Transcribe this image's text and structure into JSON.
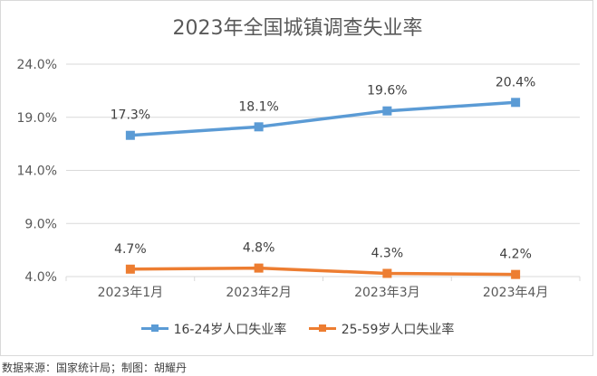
{
  "chart_data": {
    "type": "line",
    "title": "2023年全国城镇调查失业率",
    "categories": [
      "2023年1月",
      "2023年2月",
      "2023年3月",
      "2023年4月"
    ],
    "series": [
      {
        "name": "16-24岁人口失业率",
        "values": [
          17.3,
          18.1,
          19.6,
          20.4
        ],
        "labels": [
          "17.3%",
          "18.1%",
          "19.6%",
          "20.4%"
        ],
        "color": "#5b9bd5"
      },
      {
        "name": "25-59岁人口失业率",
        "values": [
          4.7,
          4.8,
          4.3,
          4.2
        ],
        "labels": [
          "4.7%",
          "4.8%",
          "4.3%",
          "4.2%"
        ],
        "color": "#ed7d31"
      }
    ],
    "yticks": [
      "4.0%",
      "9.0%",
      "14.0%",
      "19.0%",
      "24.0%"
    ],
    "ylim": [
      4,
      24
    ],
    "grid": true,
    "legend": "bottom"
  },
  "source_note": "数据来源：国家统计局；制图：胡耀丹"
}
